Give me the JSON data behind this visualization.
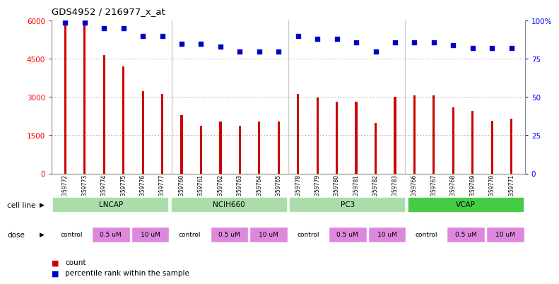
{
  "title": "GDS4952 / 216977_x_at",
  "samples": [
    "GSM1359772",
    "GSM1359773",
    "GSM1359774",
    "GSM1359775",
    "GSM1359776",
    "GSM1359777",
    "GSM1359760",
    "GSM1359761",
    "GSM1359762",
    "GSM1359763",
    "GSM1359764",
    "GSM1359765",
    "GSM1359778",
    "GSM1359779",
    "GSM1359780",
    "GSM1359781",
    "GSM1359782",
    "GSM1359783",
    "GSM1359766",
    "GSM1359767",
    "GSM1359768",
    "GSM1359769",
    "GSM1359770",
    "GSM1359771"
  ],
  "counts": [
    5950,
    5900,
    4650,
    4200,
    3230,
    3130,
    2280,
    1880,
    2050,
    1880,
    2050,
    2050,
    3130,
    2980,
    2820,
    2820,
    1980,
    3020,
    3080,
    3080,
    2600,
    2450,
    2080,
    2160
  ],
  "percentile_ranks": [
    99,
    99,
    95,
    95,
    90,
    90,
    85,
    85,
    83,
    80,
    80,
    80,
    90,
    88,
    88,
    86,
    80,
    86,
    86,
    86,
    84,
    82,
    82,
    82
  ],
  "bar_color": "#cc0000",
  "dot_color": "#0000cc",
  "ylim_left": [
    0,
    6000
  ],
  "ylim_right": [
    0,
    100
  ],
  "yticks_left": [
    0,
    1500,
    3000,
    4500,
    6000
  ],
  "yticks_right": [
    0,
    25,
    50,
    75,
    100
  ],
  "cell_lines": [
    {
      "label": "LNCAP",
      "start": 0,
      "end": 6,
      "color": "#aaddaa"
    },
    {
      "label": "NCIH660",
      "start": 6,
      "end": 12,
      "color": "#aaddaa"
    },
    {
      "label": "PC3",
      "start": 12,
      "end": 18,
      "color": "#aaddaa"
    },
    {
      "label": "VCAP",
      "start": 18,
      "end": 24,
      "color": "#44cc44"
    }
  ],
  "doses": [
    {
      "label": "control",
      "start": 0,
      "end": 2,
      "color": "#ffffff"
    },
    {
      "label": "0.5 uM",
      "start": 2,
      "end": 4,
      "color": "#dd88dd"
    },
    {
      "label": "10 uM",
      "start": 4,
      "end": 6,
      "color": "#dd88dd"
    },
    {
      "label": "control",
      "start": 6,
      "end": 8,
      "color": "#ffffff"
    },
    {
      "label": "0.5 uM",
      "start": 8,
      "end": 10,
      "color": "#dd88dd"
    },
    {
      "label": "10 uM",
      "start": 10,
      "end": 12,
      "color": "#dd88dd"
    },
    {
      "label": "control",
      "start": 12,
      "end": 14,
      "color": "#ffffff"
    },
    {
      "label": "0.5 uM",
      "start": 14,
      "end": 16,
      "color": "#dd88dd"
    },
    {
      "label": "10 uM",
      "start": 16,
      "end": 18,
      "color": "#dd88dd"
    },
    {
      "label": "control",
      "start": 18,
      "end": 20,
      "color": "#ffffff"
    },
    {
      "label": "0.5 uM",
      "start": 20,
      "end": 22,
      "color": "#dd88dd"
    },
    {
      "label": "10 uM",
      "start": 22,
      "end": 24,
      "color": "#dd88dd"
    }
  ],
  "plot_bg": "#ffffff",
  "fig_bg": "#ffffff",
  "legend_count_color": "#cc0000",
  "legend_dot_color": "#0000cc",
  "grid_color": "#999999",
  "separator_color": "#cccccc"
}
